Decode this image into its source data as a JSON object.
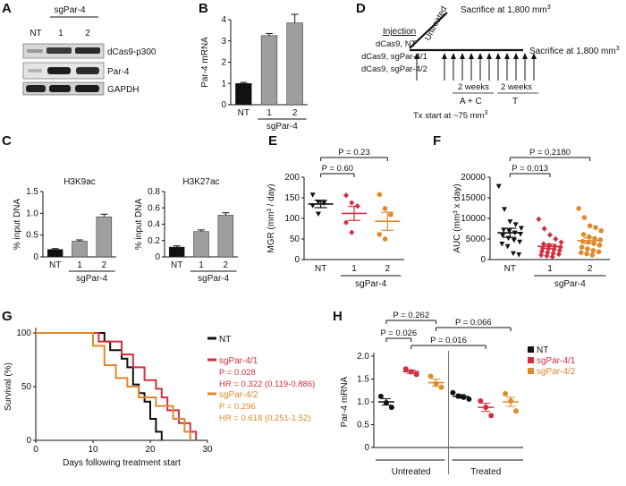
{
  "colors": {
    "black": "#111111",
    "gray": "#9e9e9e",
    "red": "#d32f3f",
    "orange": "#e08a2c"
  },
  "panels": {
    "A": "A",
    "B": "B",
    "C": "C",
    "D": "D",
    "E": "E",
    "F": "F",
    "G": "G",
    "H": "H"
  },
  "panelA": {
    "col_nt": "NT",
    "group": "sgPar-4",
    "col_1": "1",
    "col_2": "2",
    "rows": [
      "dCas9-p300",
      "Par-4",
      "GAPDH"
    ]
  },
  "panelD": {
    "injection_title": "Injection",
    "injection_lines": [
      "dCas9, NT",
      "dCas9, sgPar-4/1",
      "dCas9, sgPar-4/2"
    ],
    "untreated": "Untreated",
    "sac_top": "Sacrifice at 1,800 mm",
    "sac_main": "Sacrifice at 1,800 mm",
    "sup3": "3",
    "weeks1": "2 weeks",
    "ac": "A + C",
    "weeks2": "2 weeks",
    "t": "T",
    "tx_start": "Tx start at ~75 mm"
  },
  "chart_data": [
    {
      "id": "B",
      "type": "bar",
      "ylabel": "Par-4 mRNA",
      "categories": [
        "NT",
        "1",
        "2"
      ],
      "group_label": "sgPar-4",
      "values": [
        1.0,
        3.25,
        3.85
      ],
      "errors": [
        0.05,
        0.1,
        0.4
      ],
      "colors": [
        "#111111",
        "#9e9e9e",
        "#9e9e9e"
      ],
      "ylim": [
        0,
        4
      ],
      "yticks": [
        0,
        1,
        2,
        3,
        4
      ]
    },
    {
      "id": "C1",
      "type": "bar",
      "title": "H3K9ac",
      "ylabel": "% input DNA",
      "categories": [
        "NT",
        "1",
        "2"
      ],
      "group_label": "sgPar-4",
      "values": [
        0.17,
        0.36,
        0.92
      ],
      "errors": [
        0.02,
        0.03,
        0.06
      ],
      "colors": [
        "#111111",
        "#9e9e9e",
        "#9e9e9e"
      ],
      "ylim": [
        0,
        1.5
      ],
      "yticks": [
        0,
        0.5,
        1.0,
        1.5
      ],
      "ytick_labels": [
        "0",
        "0.5",
        "1.0",
        "1.5"
      ]
    },
    {
      "id": "C2",
      "type": "bar",
      "title": "H3K27ac",
      "ylabel": "% input DNA",
      "categories": [
        "NT",
        "1",
        "2"
      ],
      "group_label": "sgPar-4",
      "values": [
        0.12,
        0.31,
        0.51
      ],
      "errors": [
        0.015,
        0.02,
        0.03
      ],
      "colors": [
        "#111111",
        "#9e9e9e",
        "#9e9e9e"
      ],
      "ylim": [
        0,
        0.8
      ],
      "yticks": [
        0,
        0.2,
        0.4,
        0.6,
        0.8
      ],
      "ytick_labels": [
        "0",
        "0.2",
        "0.4",
        "0.6",
        "0.8"
      ]
    },
    {
      "id": "E",
      "type": "scatter",
      "ylabel": "MGR (mm³ / day)",
      "categories": [
        "NT",
        "1",
        "2"
      ],
      "group_label": "sgPar-4",
      "groups": [
        {
          "color": "#111111",
          "marker": "triangle-down",
          "points": [
            157,
            140,
            137,
            131,
            111
          ],
          "mean": 135,
          "sem": 9
        },
        {
          "color": "#d32f3f",
          "marker": "diamond",
          "points": [
            156,
            138,
            130,
            90,
            66
          ],
          "mean": 112,
          "sem": 17
        },
        {
          "color": "#e08a2c",
          "marker": "circle",
          "points": [
            158,
            124,
            109,
            61,
            50
          ],
          "mean": 93,
          "sem": 22
        }
      ],
      "ylim": [
        0,
        200
      ],
      "yticks": [
        0,
        50,
        100,
        150,
        200
      ],
      "comparisons": [
        {
          "from": 0,
          "to": 1,
          "label": "P = 0.60"
        },
        {
          "from": 0,
          "to": 2,
          "label": "P = 0.23"
        }
      ]
    },
    {
      "id": "F",
      "type": "scatter",
      "ylabel": "AUC (mm³ x day)",
      "categories": [
        "NT",
        "1",
        "2"
      ],
      "group_label": "sgPar-4",
      "groups": [
        {
          "color": "#111111",
          "marker": "triangle-down",
          "points": [
            17800,
            12200,
            9200,
            8500,
            7600,
            7200,
            6900,
            6500,
            6200,
            5800,
            5200,
            4700,
            4300,
            3800,
            3200,
            1500,
            1200
          ],
          "mean": 6500,
          "sem": 1100
        },
        {
          "color": "#d32f3f",
          "marker": "diamond",
          "points": [
            9800,
            7500,
            6000,
            5000,
            4200,
            3800,
            3500,
            3200,
            3000,
            2800,
            2600,
            2400,
            2200,
            2000,
            1700,
            1500,
            1300,
            1100,
            900,
            700
          ],
          "mean": 3200,
          "sem": 500
        },
        {
          "color": "#e08a2c",
          "marker": "circle",
          "points": [
            12400,
            10200,
            8200,
            7800,
            7000,
            6100,
            5500,
            5100,
            4800,
            4400,
            4200,
            3900,
            3500,
            3000,
            2600,
            2200,
            1900,
            1700,
            1400,
            1100
          ],
          "mean": 4600,
          "sem": 700
        },
        {
          "color": "#111111",
          "marker": "none",
          "points": [],
          "mean": 0,
          "sem": 0
        }
      ],
      "ylim": [
        0,
        20000
      ],
      "yticks": [
        0,
        5000,
        10000,
        15000,
        20000
      ],
      "comparisons": [
        {
          "from": 0,
          "to": 1,
          "label": "P = 0.013"
        },
        {
          "from": 0,
          "to": 2,
          "label": "P = 0.2180"
        }
      ]
    },
    {
      "id": "G",
      "type": "line",
      "ylabel": "Survival (%)",
      "xlabel": "Days following treatment start",
      "xlim": [
        0,
        30
      ],
      "ylim": [
        0,
        100
      ],
      "xticks": [
        0,
        10,
        20,
        30
      ],
      "yticks": [
        0,
        50,
        100
      ],
      "series": [
        {
          "name": "NT",
          "color": "#111111",
          "steps": [
            [
              0,
              100
            ],
            [
              12,
              100
            ],
            [
              12,
              92
            ],
            [
              13,
              92
            ],
            [
              13,
              84
            ],
            [
              15,
              84
            ],
            [
              15,
              76
            ],
            [
              16,
              76
            ],
            [
              16,
              68
            ],
            [
              17,
              68
            ],
            [
              17,
              52
            ],
            [
              18,
              52
            ],
            [
              18,
              44
            ],
            [
              19,
              44
            ],
            [
              19,
              36
            ],
            [
              20,
              36
            ],
            [
              20,
              20
            ],
            [
              21,
              20
            ],
            [
              21,
              8
            ],
            [
              22,
              8
            ],
            [
              22,
              0
            ]
          ]
        },
        {
          "name": "sgPar-4/1",
          "color": "#d32f3f",
          "steps": [
            [
              0,
              100
            ],
            [
              11,
              100
            ],
            [
              11,
              92
            ],
            [
              15,
              92
            ],
            [
              15,
              80
            ],
            [
              17,
              80
            ],
            [
              17,
              68
            ],
            [
              19,
              68
            ],
            [
              19,
              56
            ],
            [
              21,
              56
            ],
            [
              21,
              48
            ],
            [
              22,
              48
            ],
            [
              22,
              40
            ],
            [
              23,
              40
            ],
            [
              23,
              28
            ],
            [
              25,
              28
            ],
            [
              25,
              16
            ],
            [
              27,
              16
            ],
            [
              27,
              8
            ],
            [
              28,
              8
            ],
            [
              28,
              0
            ]
          ]
        },
        {
          "name": "sgPar-4/2",
          "color": "#e08a2c",
          "steps": [
            [
              0,
              100
            ],
            [
              10,
              100
            ],
            [
              10,
              88
            ],
            [
              12,
              88
            ],
            [
              12,
              70
            ],
            [
              14,
              70
            ],
            [
              14,
              58
            ],
            [
              16,
              58
            ],
            [
              16,
              50
            ],
            [
              18,
              50
            ],
            [
              18,
              40
            ],
            [
              21,
              40
            ],
            [
              21,
              32
            ],
            [
              24,
              32
            ],
            [
              24,
              20
            ],
            [
              26,
              20
            ],
            [
              26,
              8
            ],
            [
              27,
              8
            ],
            [
              27,
              0
            ]
          ]
        }
      ],
      "annotations": {
        "s1_p": "P = 0.028",
        "s1_hr": "HR = 0.322 (0.119-0.886)",
        "s2_p": "P = 0.296",
        "s2_hr": "HR = 0.618 (0.251-1.52)"
      }
    },
    {
      "id": "H",
      "type": "scatter",
      "ylabel": "Par-4 mRNA",
      "categories": [
        "NT",
        "sgPar-4/1",
        "sgPar-4/2",
        "NT",
        "sgPar-4/1",
        "sgPar-4/2"
      ],
      "group_labels": [
        "Untreated",
        "Treated"
      ],
      "groups": [
        {
          "color": "#111111",
          "points": [
            1.12,
            0.98,
            0.88
          ],
          "mean": 1.0,
          "sem": 0.07
        },
        {
          "color": "#d32f3f",
          "points": [
            1.72,
            1.66,
            1.6
          ],
          "mean": 1.66,
          "sem": 0.04
        },
        {
          "color": "#e08a2c",
          "points": [
            1.56,
            1.4,
            1.32
          ],
          "mean": 1.42,
          "sem": 0.08
        },
        {
          "color": "#111111",
          "points": [
            1.2,
            1.13,
            1.1,
            1.06
          ],
          "mean": 1.12,
          "sem": 0.04
        },
        {
          "color": "#d32f3f",
          "points": [
            1.02,
            0.88,
            0.7
          ],
          "mean": 0.88,
          "sem": 0.09
        },
        {
          "color": "#e08a2c",
          "points": [
            1.18,
            1.02,
            0.8
          ],
          "mean": 1.0,
          "sem": 0.1
        }
      ],
      "ylim": [
        0,
        2.0
      ],
      "yticks": [
        0,
        0.5,
        1.0,
        1.5,
        2.0
      ],
      "ytick_labels": [
        "0",
        "0.5",
        "1.0",
        "1.5",
        "2.0"
      ],
      "legend": [
        "NT",
        "sgPar-4/1",
        "sgPar-4/2"
      ],
      "comparisons": [
        {
          "from": 0,
          "to": 2,
          "label": "P = 0.262"
        },
        {
          "from": 0,
          "to": 1,
          "label": "P = 0.026"
        },
        {
          "from": 2,
          "to": 5,
          "label": "P = 0.066"
        },
        {
          "from": 1,
          "to": 4,
          "label": "P = 0.016"
        }
      ]
    }
  ]
}
